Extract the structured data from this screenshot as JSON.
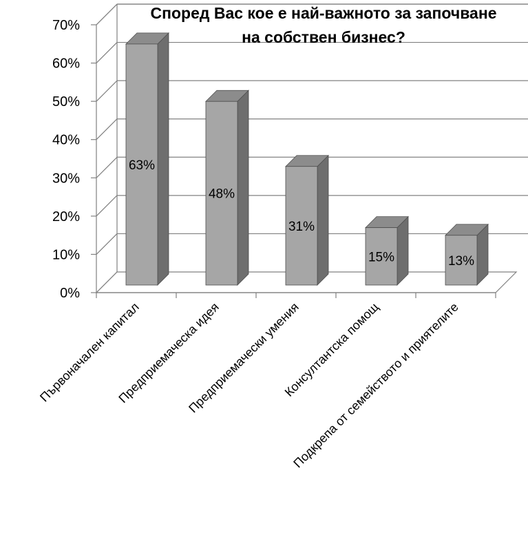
{
  "chart_data": {
    "type": "bar",
    "title_lines": [
      "Според Вас кое е най-важното за започване",
      "на собствен бизнес?"
    ],
    "categories": [
      "Първоначален капитал",
      "Предприемаческа идея",
      "Предприемачески умения",
      "Консултантска помощ",
      "Подкрепа от семейството и приятелите"
    ],
    "values": [
      63,
      48,
      31,
      15,
      13
    ],
    "data_labels": [
      "63%",
      "48%",
      "31%",
      "15%",
      "13%"
    ],
    "y_ticks": [
      "0%",
      "10%",
      "20%",
      "30%",
      "40%",
      "50%",
      "60%",
      "70%"
    ],
    "ylim": [
      0,
      70
    ],
    "grid": true,
    "legend": "none",
    "bar_colors": {
      "front": "#a6a6a6",
      "side": "#6e6e6e",
      "top": "#8c8c8c",
      "stroke": "#4d4d4d"
    }
  }
}
